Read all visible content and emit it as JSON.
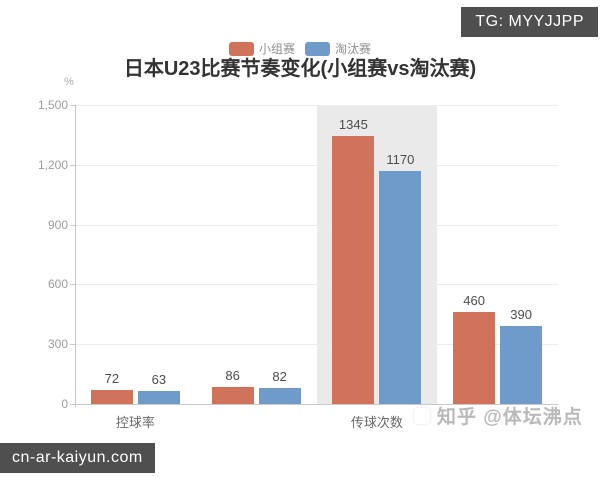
{
  "page": {
    "top_badge": "TG: MYYJJPP",
    "bottom_badge": "cn-ar-kaiyun.com",
    "watermark": "知乎 @体坛沸点"
  },
  "chart_data": {
    "type": "bar",
    "title": "日本U23比赛节奏变化(小组赛vs淘汰赛)",
    "ylabel": "%",
    "categories": [
      "控球率",
      "",
      "传球次数",
      ""
    ],
    "series": [
      {
        "name": "小组赛",
        "color": "#d0735a",
        "values": [
          72,
          86,
          1345,
          460
        ]
      },
      {
        "name": "淘汰赛",
        "color": "#6e9bca",
        "values": [
          63,
          82,
          1170,
          390
        ]
      }
    ],
    "ylim": [
      0,
      1500
    ],
    "yticks": [
      0,
      300,
      600,
      900,
      1200,
      1500
    ],
    "ytick_labels": [
      "0",
      "300",
      "600",
      "900",
      "1,200",
      "1,500"
    ],
    "grid": true,
    "legend_position": "top",
    "highlighted_category_index": 2,
    "colors": {
      "grid_line": "#ececec",
      "axis_line": "#c9c9c9",
      "highlight_band": "rgba(0,0,0,0.082)",
      "badge_bg": "#4f4f4f"
    }
  }
}
